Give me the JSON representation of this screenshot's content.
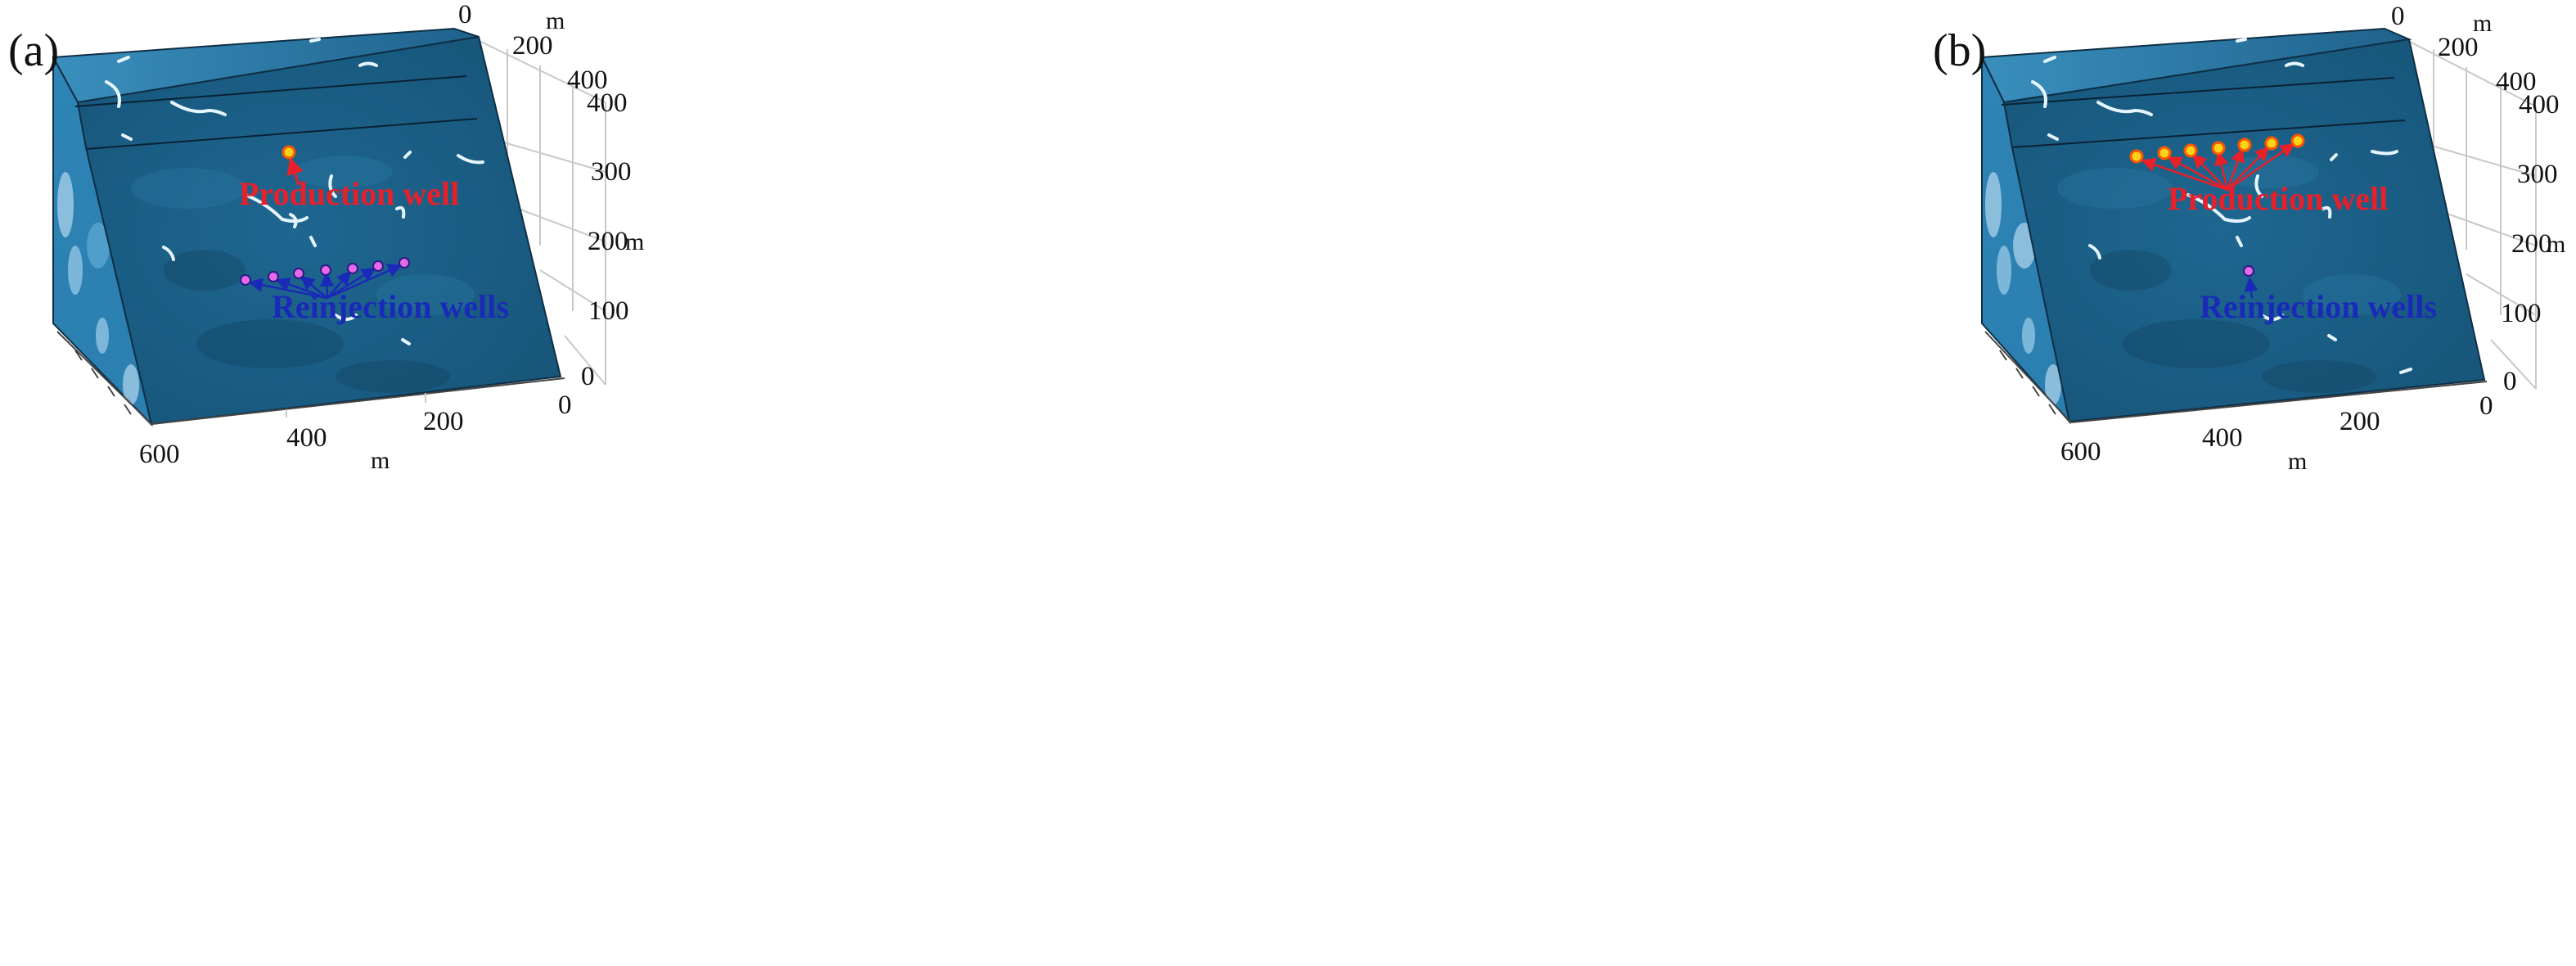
{
  "panels": [
    {
      "label": "(a)",
      "production_label": "Production well",
      "reinjection_label": "Reinjection wells",
      "production_wells": 1,
      "reinjection_wells": 7,
      "axes": {
        "y_ticks": [
          "0",
          "200",
          "400"
        ],
        "y_unit": "m",
        "z_ticks": [
          "400",
          "300",
          "200",
          "100",
          "0"
        ],
        "z_unit": "m",
        "x_ticks": [
          "600",
          "400",
          "200",
          "0"
        ],
        "x_unit": "m"
      }
    },
    {
      "label": "(b)",
      "production_label": "Production well",
      "reinjection_label": "Reinjection wells",
      "production_wells": 7,
      "reinjection_wells": 1,
      "axes": {
        "y_ticks": [
          "0",
          "200",
          "400"
        ],
        "y_unit": "m",
        "z_ticks": [
          "400",
          "300",
          "200",
          "100",
          "0"
        ],
        "z_unit": "m",
        "x_ticks": [
          "600",
          "400",
          "200",
          "0"
        ],
        "x_unit": "m"
      }
    }
  ],
  "colors": {
    "rock": "#1d5f86",
    "rock_dark": "#164c6d",
    "rock_light": "#2e7aa6",
    "fracture": "#e6f6ff",
    "production_marker": "#ffd21a",
    "production_arrow": "#e8202a",
    "reinjection_marker": "#e66ae6",
    "reinjection_arrow": "#1a2ab8"
  }
}
